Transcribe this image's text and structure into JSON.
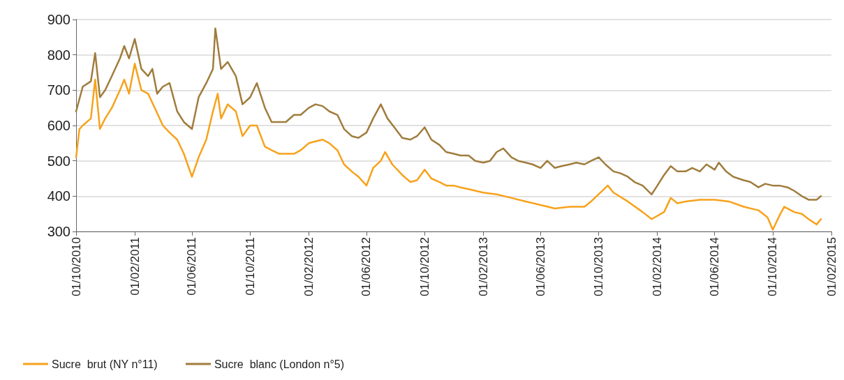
{
  "chart_data": {
    "type": "line",
    "xlim": [
      "2010-10-01",
      "2015-02-01"
    ],
    "ylim": [
      300,
      900
    ],
    "yticks": [
      300,
      400,
      500,
      600,
      700,
      800,
      900
    ],
    "xticks": [
      {
        "value": "2010-10-01",
        "label": "01/10/2010"
      },
      {
        "value": "2011-02-01",
        "label": "01/02/2011"
      },
      {
        "value": "2011-06-01",
        "label": "01/06/2011"
      },
      {
        "value": "2011-10-01",
        "label": "01/10/2011"
      },
      {
        "value": "2012-02-01",
        "label": "01/02/2012"
      },
      {
        "value": "2012-06-01",
        "label": "01/06/2012"
      },
      {
        "value": "2012-10-01",
        "label": "01/10/2012"
      },
      {
        "value": "2013-02-01",
        "label": "01/02/2013"
      },
      {
        "value": "2013-06-01",
        "label": "01/06/2013"
      },
      {
        "value": "2013-10-01",
        "label": "01/10/2013"
      },
      {
        "value": "2014-02-01",
        "label": "01/02/2014"
      },
      {
        "value": "2014-06-01",
        "label": "01/06/2014"
      },
      {
        "value": "2014-10-01",
        "label": "01/10/2014"
      },
      {
        "value": "2015-02-01",
        "label": "01/02/2015"
      }
    ],
    "grid": "y",
    "legend": "bottom",
    "marker": "none",
    "line_style": "solid",
    "series": [
      {
        "name": "Sucre  brut (NY n°11)",
        "color": "#f7a21b",
        "x": [
          "2010-10-01",
          "2010-10-08",
          "2010-10-15",
          "2010-11-01",
          "2010-11-10",
          "2010-11-20",
          "2010-12-01",
          "2010-12-15",
          "2011-01-01",
          "2011-01-10",
          "2011-01-20",
          "2011-02-01",
          "2011-02-15",
          "2011-03-01",
          "2011-03-15",
          "2011-04-01",
          "2011-04-15",
          "2011-05-01",
          "2011-05-15",
          "2011-06-01",
          "2011-06-15",
          "2011-07-01",
          "2011-07-15",
          "2011-07-25",
          "2011-08-01",
          "2011-08-15",
          "2011-09-01",
          "2011-09-15",
          "2011-10-01",
          "2011-10-15",
          "2011-11-01",
          "2011-11-15",
          "2011-12-01",
          "2011-12-15",
          "2012-01-01",
          "2012-01-15",
          "2012-02-01",
          "2012-02-15",
          "2012-03-01",
          "2012-03-15",
          "2012-04-01",
          "2012-04-15",
          "2012-05-01",
          "2012-05-15",
          "2012-06-01",
          "2012-06-15",
          "2012-07-01",
          "2012-07-10",
          "2012-07-25",
          "2012-08-15",
          "2012-09-01",
          "2012-09-15",
          "2012-10-01",
          "2012-10-15",
          "2012-11-01",
          "2012-11-15",
          "2012-12-01",
          "2012-12-15",
          "2013-01-01",
          "2013-02-01",
          "2013-03-01",
          "2013-04-01",
          "2013-05-01",
          "2013-06-01",
          "2013-07-01",
          "2013-08-01",
          "2013-09-01",
          "2013-09-15",
          "2013-10-20",
          "2013-11-01",
          "2013-12-01",
          "2014-01-01",
          "2014-01-20",
          "2014-02-15",
          "2014-03-01",
          "2014-03-15",
          "2014-04-01",
          "2014-05-01",
          "2014-06-01",
          "2014-07-01",
          "2014-08-01",
          "2014-09-01",
          "2014-09-20",
          "2014-10-01",
          "2014-10-15",
          "2014-10-25",
          "2014-11-15",
          "2014-12-01",
          "2014-12-15",
          "2015-01-01",
          "2015-01-10"
        ],
        "values": [
          510,
          590,
          600,
          620,
          730,
          590,
          620,
          650,
          700,
          730,
          690,
          775,
          700,
          690,
          650,
          600,
          580,
          560,
          520,
          455,
          510,
          560,
          640,
          690,
          620,
          660,
          640,
          570,
          600,
          600,
          540,
          530,
          520,
          520,
          520,
          530,
          550,
          555,
          560,
          550,
          530,
          490,
          470,
          455,
          430,
          480,
          500,
          525,
          490,
          460,
          440,
          445,
          475,
          450,
          440,
          430,
          430,
          425,
          420,
          410,
          405,
          395,
          385,
          375,
          365,
          370,
          370,
          385,
          430,
          410,
          385,
          355,
          335,
          355,
          395,
          380,
          385,
          390,
          390,
          385,
          370,
          360,
          340,
          305,
          345,
          370,
          355,
          350,
          335,
          320,
          335
        ]
      },
      {
        "name": "Sucre  blanc (London n°5)",
        "color": "#a07c3c",
        "x": [
          "2010-10-01",
          "2010-10-15",
          "2010-11-01",
          "2010-11-10",
          "2010-11-20",
          "2010-12-01",
          "2010-12-15",
          "2011-01-01",
          "2011-01-10",
          "2011-01-20",
          "2011-02-01",
          "2011-02-15",
          "2011-03-01",
          "2011-03-10",
          "2011-03-20",
          "2011-04-01",
          "2011-04-15",
          "2011-05-01",
          "2011-05-15",
          "2011-06-01",
          "2011-06-15",
          "2011-07-01",
          "2011-07-15",
          "2011-07-20",
          "2011-08-01",
          "2011-08-15",
          "2011-09-01",
          "2011-09-15",
          "2011-10-01",
          "2011-10-15",
          "2011-11-01",
          "2011-11-15",
          "2011-12-01",
          "2011-12-15",
          "2012-01-01",
          "2012-01-15",
          "2012-02-01",
          "2012-02-15",
          "2012-03-01",
          "2012-03-15",
          "2012-04-01",
          "2012-04-15",
          "2012-05-01",
          "2012-05-15",
          "2012-06-01",
          "2012-06-15",
          "2012-07-01",
          "2012-07-15",
          "2012-08-01",
          "2012-08-15",
          "2012-09-01",
          "2012-09-15",
          "2012-10-01",
          "2012-10-15",
          "2012-11-01",
          "2012-11-15",
          "2012-12-01",
          "2012-12-15",
          "2013-01-01",
          "2013-01-15",
          "2013-02-01",
          "2013-02-15",
          "2013-03-01",
          "2013-03-15",
          "2013-04-01",
          "2013-04-15",
          "2013-05-01",
          "2013-05-15",
          "2013-06-01",
          "2013-06-15",
          "2013-07-01",
          "2013-07-15",
          "2013-08-01",
          "2013-08-15",
          "2013-09-01",
          "2013-09-15",
          "2013-10-01",
          "2013-10-15",
          "2013-11-01",
          "2013-11-15",
          "2013-12-01",
          "2013-12-15",
          "2014-01-01",
          "2014-01-20",
          "2014-02-01",
          "2014-02-15",
          "2014-03-01",
          "2014-03-15",
          "2014-04-01",
          "2014-04-15",
          "2014-05-01",
          "2014-05-15",
          "2014-06-01",
          "2014-06-10",
          "2014-06-25",
          "2014-07-10",
          "2014-08-01",
          "2014-08-15",
          "2014-09-01",
          "2014-09-15",
          "2014-10-01",
          "2014-10-15",
          "2014-11-01",
          "2014-11-15",
          "2014-12-01",
          "2014-12-15",
          "2015-01-01",
          "2015-01-10"
        ],
        "values": [
          640,
          710,
          725,
          805,
          680,
          700,
          740,
          790,
          825,
          790,
          845,
          760,
          740,
          760,
          690,
          710,
          720,
          640,
          610,
          590,
          680,
          720,
          760,
          875,
          760,
          780,
          740,
          660,
          680,
          720,
          650,
          610,
          610,
          610,
          630,
          630,
          650,
          660,
          655,
          640,
          630,
          590,
          570,
          565,
          580,
          620,
          660,
          620,
          590,
          565,
          560,
          570,
          595,
          560,
          545,
          525,
          520,
          515,
          515,
          500,
          495,
          500,
          525,
          535,
          510,
          500,
          495,
          490,
          480,
          500,
          480,
          485,
          490,
          495,
          490,
          500,
          510,
          490,
          470,
          465,
          455,
          440,
          430,
          405,
          430,
          460,
          485,
          470,
          470,
          480,
          470,
          490,
          475,
          495,
          470,
          455,
          445,
          440,
          425,
          435,
          430,
          430,
          425,
          415,
          400,
          390,
          390,
          400
        ]
      }
    ]
  }
}
